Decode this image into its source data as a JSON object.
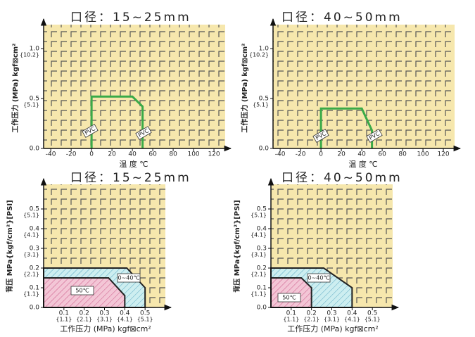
{
  "chart_data": [
    {
      "type": "line",
      "title": "口径：15~25mm",
      "x_label": "温 度 ℃",
      "y_label": "工作压力 (MPa) kgf⊠cm²",
      "xlim": [
        -47,
        131
      ],
      "ylim": [
        0,
        1.24
      ],
      "xticks": [
        -40,
        -20,
        0,
        20,
        40,
        60,
        80,
        100,
        120
      ],
      "yticks": [
        {
          "value": 0,
          "label": "0.0"
        },
        {
          "value": 0.5,
          "label": "0.5",
          "sublabel": "{5.1}"
        },
        {
          "value": 1.0,
          "label": "1.0",
          "sublabel": "{10.2}"
        }
      ],
      "series": [
        {
          "color": "#3aaa48",
          "x": [
            0,
            0,
            40,
            50,
            50
          ],
          "values": [
            0,
            0.52,
            0.52,
            0.42,
            0
          ]
        }
      ],
      "annotations": [
        "PVC",
        "PVC"
      ]
    },
    {
      "type": "line",
      "title": "口径：40~50mm",
      "x_label": "温 度 ℃",
      "y_label": "工作压力 (MPa) kgf⊠cm²",
      "xlim": [
        -47,
        131
      ],
      "ylim": [
        0,
        1.24
      ],
      "xticks": [
        -40,
        -20,
        0,
        20,
        40,
        60,
        80,
        100,
        120
      ],
      "yticks": [
        {
          "value": 0,
          "label": "0.0"
        },
        {
          "value": 0.5,
          "label": "0.5",
          "sublabel": "{5.1}"
        },
        {
          "value": 1.0,
          "label": "1.0",
          "sublabel": "{10.2}"
        }
      ],
      "series": [
        {
          "color": "#3aaa48",
          "x": [
            0,
            0,
            40,
            50,
            50
          ],
          "values": [
            0,
            0.4,
            0.4,
            0.18,
            0
          ]
        }
      ],
      "annotations": [
        "PVC",
        "PVC"
      ]
    },
    {
      "type": "area",
      "title": "口径：15~25mm",
      "x_label": "工作压力 (MPa) kgf⊠cm²",
      "y_label": "背压 MPa{kgf/cm²}[PSI]",
      "xlim": [
        0,
        0.6
      ],
      "ylim": [
        0,
        0.625
      ],
      "xticks": [
        {
          "value": 0.1,
          "label": "0.1",
          "sublabel": "{1.1}"
        },
        {
          "value": 0.2,
          "label": "0.2",
          "sublabel": "{2.1}"
        },
        {
          "value": 0.3,
          "label": "0.3",
          "sublabel": "{3.1}"
        },
        {
          "value": 0.4,
          "label": "0.4",
          "sublabel": "{4.1}"
        },
        {
          "value": 0.5,
          "label": "0.5",
          "sublabel": "{5.1}"
        }
      ],
      "yticks": [
        {
          "value": 0,
          "label": "0.0"
        },
        {
          "value": 0.1,
          "label": "0.1",
          "sublabel": "{1.1}"
        },
        {
          "value": 0.2,
          "label": "0.2",
          "sublabel": "{2.1}"
        },
        {
          "value": 0.3,
          "label": "0.3",
          "sublabel": "{3.1}"
        },
        {
          "value": 0.4,
          "label": "0.4",
          "sublabel": "{4.1}"
        },
        {
          "value": 0.5,
          "label": "0.5",
          "sublabel": "{5.1}"
        }
      ],
      "series": [
        {
          "name": "0~40℃",
          "color": "#cdeef0",
          "x": [
            0,
            0,
            0.41,
            0.5,
            0.5
          ],
          "values": [
            0,
            0.2,
            0.2,
            0.1,
            0
          ]
        },
        {
          "name": "50℃",
          "color": "#f3c6d6",
          "x": [
            0,
            0,
            0.32,
            0.4,
            0.4
          ],
          "values": [
            0,
            0.15,
            0.15,
            0.06,
            0
          ]
        }
      ]
    },
    {
      "type": "area",
      "title": "口径：40~50mm",
      "x_label": "工作压力 (MPa) kgf⊠cm²",
      "y_label": "背压 MPa{kgf/cm²}[PSI]",
      "xlim": [
        0,
        0.6
      ],
      "ylim": [
        0,
        0.625
      ],
      "xticks": [
        {
          "value": 0.1,
          "label": "0.1",
          "sublabel": "{1.1}"
        },
        {
          "value": 0.2,
          "label": "0.2",
          "sublabel": "{2.1}"
        },
        {
          "value": 0.3,
          "label": "0.3",
          "sublabel": "{3.1}"
        },
        {
          "value": 0.4,
          "label": "0.4",
          "sublabel": "{4.1}"
        },
        {
          "value": 0.5,
          "label": "0.5",
          "sublabel": "{5.1}"
        }
      ],
      "yticks": [
        {
          "value": 0,
          "label": "0.0"
        },
        {
          "value": 0.1,
          "label": "0.1",
          "sublabel": "{1.1}"
        },
        {
          "value": 0.2,
          "label": "0.2",
          "sublabel": "{2.1}"
        },
        {
          "value": 0.3,
          "label": "0.3",
          "sublabel": "{3.1}"
        },
        {
          "value": 0.4,
          "label": "0.4",
          "sublabel": "{4.1}"
        },
        {
          "value": 0.5,
          "label": "0.5",
          "sublabel": "{5.1}"
        }
      ],
      "series": [
        {
          "name": "0~40℃",
          "color": "#cdeef0",
          "x": [
            0,
            0,
            0.26,
            0.4,
            0.4
          ],
          "values": [
            0,
            0.2,
            0.2,
            0.1,
            0
          ]
        },
        {
          "name": "50℃",
          "color": "#f3c6d6",
          "x": [
            0,
            0,
            0.15,
            0.2,
            0.2
          ],
          "values": [
            0,
            0.15,
            0.15,
            0.1,
            0
          ]
        }
      ]
    }
  ]
}
